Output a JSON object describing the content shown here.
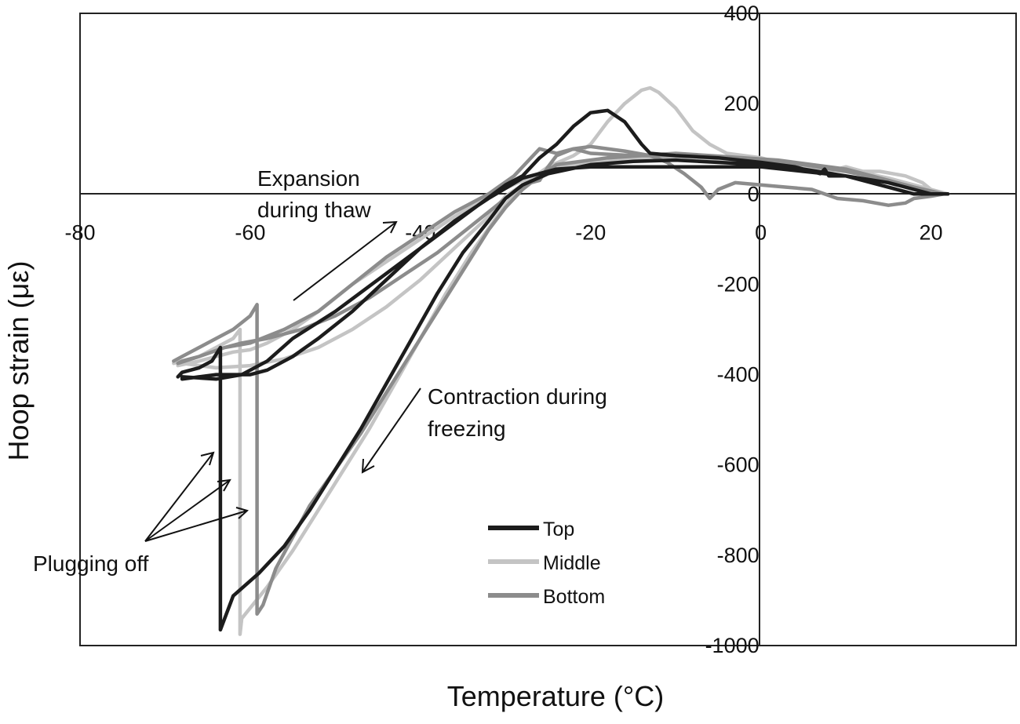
{
  "chart_data": {
    "type": "line",
    "xlabel": "Temperature (°C)",
    "ylabel": "Hoop strain (με)",
    "xlim": [
      -80,
      30
    ],
    "ylim": [
      -1000,
      400
    ],
    "x_ticks": [
      {
        "value": -80,
        "label": "-80"
      },
      {
        "value": -60,
        "label": "-60"
      },
      {
        "value": -40,
        "label": "-40"
      },
      {
        "value": -20,
        "label": "-20"
      },
      {
        "value": 0,
        "label": "0"
      },
      {
        "value": 20,
        "label": "20"
      }
    ],
    "y_ticks": [
      {
        "value": 400,
        "label": "400"
      },
      {
        "value": 200,
        "label": "200"
      },
      {
        "value": 0,
        "label": "0"
      },
      {
        "value": -200,
        "label": "-200"
      },
      {
        "value": -400,
        "label": "-400"
      },
      {
        "value": -600,
        "label": "-600"
      },
      {
        "value": -800,
        "label": "-800"
      },
      {
        "value": -1000,
        "label": "-1000"
      }
    ],
    "grid": false,
    "legend_position": "bottom-center",
    "series": [
      {
        "name": "Top",
        "color": "#1c1c1c",
        "points": [
          [
            22,
            0
          ],
          [
            18,
            0
          ],
          [
            14,
            20
          ],
          [
            10,
            40
          ],
          [
            8,
            40
          ],
          [
            7.5,
            55
          ],
          [
            7,
            45
          ],
          [
            4,
            60
          ],
          [
            0,
            70
          ],
          [
            -5,
            80
          ],
          [
            -10,
            85
          ],
          [
            -13,
            90
          ],
          [
            -14,
            110
          ],
          [
            -16,
            160
          ],
          [
            -18,
            185
          ],
          [
            -20,
            180
          ],
          [
            -22,
            150
          ],
          [
            -24,
            110
          ],
          [
            -26,
            80
          ],
          [
            -28,
            40
          ],
          [
            -30,
            20
          ],
          [
            -35,
            -50
          ],
          [
            -40,
            -120
          ],
          [
            -45,
            -190
          ],
          [
            -50,
            -260
          ],
          [
            -55,
            -320
          ],
          [
            -58,
            -370
          ],
          [
            -61,
            -400
          ],
          [
            -64,
            -410
          ],
          [
            -68,
            -405
          ],
          [
            -68,
            -410
          ],
          [
            -66,
            -405
          ],
          [
            -64,
            -400
          ],
          [
            -62,
            -400
          ],
          [
            -60,
            -400
          ],
          [
            -58,
            -390
          ],
          [
            -55,
            -360
          ],
          [
            -52,
            -320
          ],
          [
            -48,
            -260
          ],
          [
            -44,
            -190
          ],
          [
            -40,
            -120
          ],
          [
            -36,
            -60
          ],
          [
            -32,
            -10
          ],
          [
            -28,
            35
          ],
          [
            -24,
            55
          ],
          [
            -20,
            60
          ],
          [
            -15,
            60
          ],
          [
            -10,
            60
          ],
          [
            -5,
            60
          ],
          [
            0,
            60
          ],
          [
            5,
            50
          ],
          [
            10,
            40
          ],
          [
            15,
            25
          ],
          [
            18,
            10
          ],
          [
            20,
            0
          ],
          [
            18,
            0
          ],
          [
            14,
            20
          ],
          [
            10,
            40
          ],
          [
            5,
            55
          ],
          [
            0,
            65
          ],
          [
            -5,
            70
          ],
          [
            -10,
            75
          ],
          [
            -15,
            72
          ],
          [
            -20,
            65
          ],
          [
            -25,
            45
          ],
          [
            -28,
            20
          ],
          [
            -30,
            -10
          ],
          [
            -32,
            -60
          ],
          [
            -35,
            -130
          ],
          [
            -38,
            -220
          ],
          [
            -41,
            -320
          ],
          [
            -44,
            -420
          ],
          [
            -47,
            -520
          ],
          [
            -50,
            -610
          ],
          [
            -53,
            -700
          ],
          [
            -56,
            -780
          ],
          [
            -59,
            -840
          ],
          [
            -62,
            -890
          ],
          [
            -63.5,
            -965
          ],
          [
            -63.5,
            -340
          ],
          [
            -64,
            -355
          ],
          [
            -64.5,
            -370
          ],
          [
            -66,
            -385
          ],
          [
            -68,
            -395
          ],
          [
            -68.5,
            -405
          ]
        ]
      },
      {
        "name": "Middle",
        "color": "#c4c4c4",
        "points": [
          [
            22,
            0
          ],
          [
            20,
            10
          ],
          [
            19,
            25
          ],
          [
            17,
            40
          ],
          [
            14,
            50
          ],
          [
            12,
            50
          ],
          [
            10,
            60
          ],
          [
            8,
            50
          ],
          [
            4,
            60
          ],
          [
            0,
            80
          ],
          [
            -4,
            90
          ],
          [
            -6,
            110
          ],
          [
            -8,
            140
          ],
          [
            -10,
            190
          ],
          [
            -12,
            225
          ],
          [
            -13,
            235
          ],
          [
            -14,
            230
          ],
          [
            -16,
            200
          ],
          [
            -18,
            160
          ],
          [
            -20,
            110
          ],
          [
            -22,
            85
          ],
          [
            -25,
            60
          ],
          [
            -28,
            20
          ],
          [
            -30,
            -5
          ],
          [
            -32,
            -50
          ],
          [
            -36,
            -120
          ],
          [
            -40,
            -190
          ],
          [
            -44,
            -250
          ],
          [
            -48,
            -300
          ],
          [
            -52,
            -340
          ],
          [
            -56,
            -365
          ],
          [
            -60,
            -380
          ],
          [
            -64,
            -385
          ],
          [
            -68,
            -375
          ],
          [
            -68.5,
            -380
          ],
          [
            -66,
            -370
          ],
          [
            -64,
            -360
          ],
          [
            -62,
            -350
          ],
          [
            -60,
            -345
          ],
          [
            -58,
            -330
          ],
          [
            -55,
            -300
          ],
          [
            -52,
            -260
          ],
          [
            -48,
            -200
          ],
          [
            -44,
            -150
          ],
          [
            -40,
            -100
          ],
          [
            -36,
            -50
          ],
          [
            -32,
            -5
          ],
          [
            -28,
            30
          ],
          [
            -24,
            60
          ],
          [
            -20,
            70
          ],
          [
            -15,
            75
          ],
          [
            -10,
            75
          ],
          [
            -5,
            75
          ],
          [
            0,
            70
          ],
          [
            5,
            60
          ],
          [
            10,
            50
          ],
          [
            15,
            35
          ],
          [
            20,
            10
          ],
          [
            22,
            0
          ],
          [
            20,
            10
          ],
          [
            15,
            35
          ],
          [
            10,
            55
          ],
          [
            5,
            60
          ],
          [
            0,
            70
          ],
          [
            -5,
            75
          ],
          [
            -10,
            80
          ],
          [
            -15,
            80
          ],
          [
            -20,
            70
          ],
          [
            -24,
            55
          ],
          [
            -27,
            25
          ],
          [
            -29,
            0
          ],
          [
            -31,
            -50
          ],
          [
            -34,
            -130
          ],
          [
            -37,
            -220
          ],
          [
            -40,
            -320
          ],
          [
            -43,
            -420
          ],
          [
            -46,
            -520
          ],
          [
            -49,
            -610
          ],
          [
            -52,
            -700
          ],
          [
            -55,
            -790
          ],
          [
            -58,
            -870
          ],
          [
            -61,
            -940
          ],
          [
            -61.2,
            -975
          ],
          [
            -61.2,
            -300
          ],
          [
            -62,
            -320
          ],
          [
            -64,
            -340
          ],
          [
            -66,
            -360
          ],
          [
            -68,
            -370
          ],
          [
            -69,
            -375
          ]
        ]
      },
      {
        "name": "Bottom",
        "color": "#8c8c8c",
        "points": [
          [
            21.5,
            0
          ],
          [
            20,
            -5
          ],
          [
            18,
            -10
          ],
          [
            17,
            -20
          ],
          [
            15,
            -25
          ],
          [
            12,
            -15
          ],
          [
            9,
            -10
          ],
          [
            6,
            10
          ],
          [
            3,
            15
          ],
          [
            0,
            20
          ],
          [
            -3,
            25
          ],
          [
            -5,
            10
          ],
          [
            -5.5,
            0
          ],
          [
            -6,
            -10
          ],
          [
            -7,
            15
          ],
          [
            -9,
            45
          ],
          [
            -11,
            70
          ],
          [
            -13,
            85
          ],
          [
            -16,
            95
          ],
          [
            -20,
            105
          ],
          [
            -22,
            100
          ],
          [
            -24,
            85
          ],
          [
            -25,
            60
          ],
          [
            -26,
            30
          ],
          [
            -28,
            20
          ],
          [
            -30,
            -10
          ],
          [
            -34,
            -70
          ],
          [
            -38,
            -130
          ],
          [
            -42,
            -180
          ],
          [
            -46,
            -230
          ],
          [
            -50,
            -270
          ],
          [
            -54,
            -300
          ],
          [
            -58,
            -320
          ],
          [
            -61,
            -330
          ],
          [
            -63,
            -340
          ],
          [
            -66,
            -360
          ],
          [
            -68,
            -370
          ],
          [
            -68.5,
            -375
          ],
          [
            -66,
            -360
          ],
          [
            -63,
            -340
          ],
          [
            -60,
            -330
          ],
          [
            -56,
            -300
          ],
          [
            -52,
            -260
          ],
          [
            -48,
            -200
          ],
          [
            -44,
            -140
          ],
          [
            -40,
            -90
          ],
          [
            -36,
            -40
          ],
          [
            -32,
            0
          ],
          [
            -29,
            40
          ],
          [
            -27,
            80
          ],
          [
            -26,
            100
          ],
          [
            -24,
            90
          ],
          [
            -22,
            100
          ],
          [
            -20,
            90
          ],
          [
            -15,
            85
          ],
          [
            -10,
            85
          ],
          [
            -5,
            80
          ],
          [
            0,
            75
          ],
          [
            5,
            65
          ],
          [
            10,
            50
          ],
          [
            15,
            30
          ],
          [
            18,
            15
          ],
          [
            20,
            5
          ],
          [
            21.5,
            0
          ],
          [
            18,
            15
          ],
          [
            14,
            35
          ],
          [
            10,
            55
          ],
          [
            6,
            65
          ],
          [
            2,
            75
          ],
          [
            -2,
            80
          ],
          [
            -6,
            85
          ],
          [
            -10,
            90
          ],
          [
            -14,
            85
          ],
          [
            -18,
            80
          ],
          [
            -22,
            70
          ],
          [
            -24,
            65
          ],
          [
            -26,
            40
          ],
          [
            -28,
            10
          ],
          [
            -30,
            -30
          ],
          [
            -32,
            -80
          ],
          [
            -35,
            -170
          ],
          [
            -38,
            -260
          ],
          [
            -41,
            -350
          ],
          [
            -44,
            -440
          ],
          [
            -47,
            -530
          ],
          [
            -50,
            -610
          ],
          [
            -53,
            -690
          ],
          [
            -55,
            -760
          ],
          [
            -57,
            -830
          ],
          [
            -58.5,
            -910
          ],
          [
            -59.2,
            -930
          ],
          [
            -59.2,
            -245
          ],
          [
            -60,
            -270
          ],
          [
            -62,
            -300
          ],
          [
            -64,
            -320
          ],
          [
            -66,
            -340
          ],
          [
            -68,
            -360
          ],
          [
            -69,
            -370
          ]
        ]
      }
    ],
    "annotations": [
      {
        "lines": [
          "Expansion",
          "during thaw"
        ]
      },
      {
        "lines": [
          "Contraction during",
          "freezing"
        ]
      },
      {
        "lines": [
          "Plugging off"
        ]
      }
    ]
  }
}
